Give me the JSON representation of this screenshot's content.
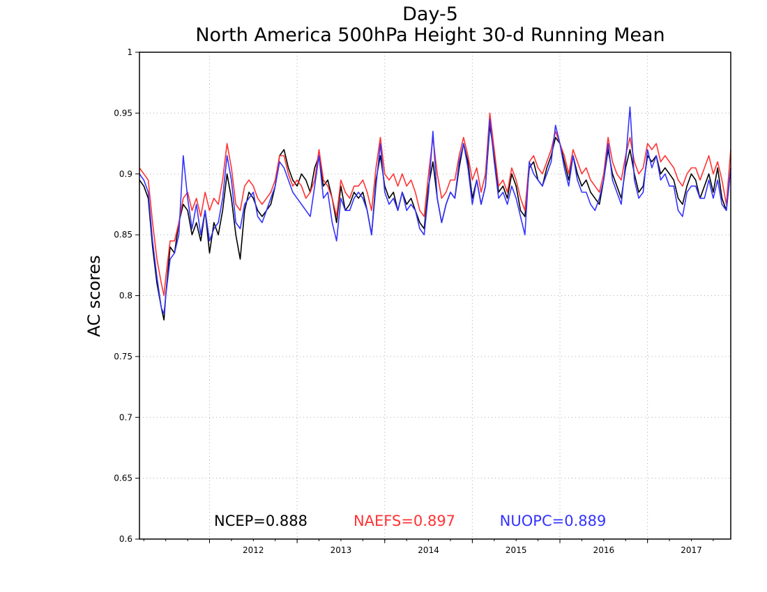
{
  "chart_data": {
    "type": "line",
    "title": "Day-5",
    "subtitle": "North America 500hPa Height 30-d Running Mean",
    "xlabel": "",
    "ylabel": "AC scores",
    "xlim": [
      2011.2,
      2017.95
    ],
    "ylim": [
      0.6,
      1.0
    ],
    "yticks": [
      "0.6",
      "0.65",
      "0.7",
      "0.75",
      "0.8",
      "0.85",
      "0.9",
      "0.95",
      "1"
    ],
    "xticks": [
      "2012",
      "2013",
      "2014",
      "2015",
      "2016",
      "2017"
    ],
    "grid": true,
    "legend": "bottom",
    "series": [
      {
        "name": "NCEP",
        "stat_label": "NCEP=0.888",
        "color": "#000000",
        "x": [
          2011.2,
          2011.25,
          2011.3,
          2011.35,
          2011.4,
          2011.45,
          2011.48,
          2011.5,
          2011.55,
          2011.6,
          2011.65,
          2011.7,
          2011.75,
          2011.8,
          2011.85,
          2011.9,
          2011.95,
          2012.0,
          2012.05,
          2012.1,
          2012.15,
          2012.2,
          2012.25,
          2012.3,
          2012.35,
          2012.4,
          2012.45,
          2012.5,
          2012.55,
          2012.6,
          2012.65,
          2012.7,
          2012.75,
          2012.8,
          2012.85,
          2012.9,
          2012.95,
          2013.0,
          2013.05,
          2013.1,
          2013.15,
          2013.2,
          2013.25,
          2013.3,
          2013.35,
          2013.4,
          2013.45,
          2013.5,
          2013.55,
          2013.6,
          2013.65,
          2013.7,
          2013.75,
          2013.8,
          2013.85,
          2013.9,
          2013.95,
          2014.0,
          2014.05,
          2014.1,
          2014.15,
          2014.2,
          2014.25,
          2014.3,
          2014.35,
          2014.4,
          2014.45,
          2014.5,
          2014.55,
          2014.6,
          2014.65,
          2014.7,
          2014.75,
          2014.8,
          2014.85,
          2014.9,
          2014.95,
          2015.0,
          2015.05,
          2015.1,
          2015.15,
          2015.2,
          2015.25,
          2015.3,
          2015.35,
          2015.4,
          2015.45,
          2015.5,
          2015.55,
          2015.6,
          2015.65,
          2015.7,
          2015.75,
          2015.8,
          2015.85,
          2015.9,
          2015.95,
          2016.0,
          2016.05,
          2016.1,
          2016.15,
          2016.2,
          2016.25,
          2016.3,
          2016.35,
          2016.4,
          2016.45,
          2016.5,
          2016.55,
          2016.6,
          2016.65,
          2016.7,
          2016.75,
          2016.8,
          2016.85,
          2016.9,
          2016.95,
          2017.0,
          2017.05,
          2017.1,
          2017.15,
          2017.2,
          2017.25,
          2017.3,
          2017.35,
          2017.4,
          2017.45,
          2017.5,
          2017.55,
          2017.6,
          2017.65,
          2017.7,
          2017.75,
          2017.8,
          2017.85,
          2017.9,
          2017.95
        ],
        "values": [
          0.895,
          0.89,
          0.88,
          0.84,
          0.81,
          0.79,
          0.78,
          0.8,
          0.84,
          0.835,
          0.86,
          0.875,
          0.87,
          0.85,
          0.86,
          0.845,
          0.87,
          0.835,
          0.86,
          0.85,
          0.87,
          0.9,
          0.88,
          0.85,
          0.83,
          0.87,
          0.885,
          0.88,
          0.87,
          0.865,
          0.87,
          0.875,
          0.89,
          0.915,
          0.92,
          0.905,
          0.895,
          0.89,
          0.9,
          0.895,
          0.885,
          0.905,
          0.915,
          0.89,
          0.895,
          0.88,
          0.86,
          0.89,
          0.87,
          0.875,
          0.885,
          0.88,
          0.885,
          0.87,
          0.85,
          0.895,
          0.915,
          0.89,
          0.88,
          0.885,
          0.87,
          0.885,
          0.875,
          0.88,
          0.87,
          0.86,
          0.855,
          0.89,
          0.91,
          0.88,
          0.86,
          0.875,
          0.885,
          0.88,
          0.905,
          0.925,
          0.91,
          0.88,
          0.895,
          0.875,
          0.89,
          0.94,
          0.915,
          0.885,
          0.89,
          0.88,
          0.9,
          0.89,
          0.87,
          0.865,
          0.905,
          0.91,
          0.895,
          0.89,
          0.905,
          0.915,
          0.93,
          0.925,
          0.91,
          0.895,
          0.915,
          0.9,
          0.89,
          0.895,
          0.885,
          0.88,
          0.875,
          0.895,
          0.92,
          0.9,
          0.89,
          0.88,
          0.905,
          0.92,
          0.9,
          0.885,
          0.89,
          0.915,
          0.91,
          0.915,
          0.9,
          0.905,
          0.9,
          0.895,
          0.88,
          0.875,
          0.89,
          0.9,
          0.895,
          0.88,
          0.89,
          0.9,
          0.885,
          0.905,
          0.88,
          0.87,
          0.905
        ]
      },
      {
        "name": "NAEFS",
        "stat_label": "NAEFS=0.897",
        "color": "#ff3333",
        "x": [
          2011.2,
          2011.25,
          2011.3,
          2011.35,
          2011.4,
          2011.45,
          2011.48,
          2011.5,
          2011.55,
          2011.6,
          2011.65,
          2011.7,
          2011.75,
          2011.8,
          2011.85,
          2011.9,
          2011.95,
          2012.0,
          2012.05,
          2012.1,
          2012.15,
          2012.2,
          2012.25,
          2012.3,
          2012.35,
          2012.4,
          2012.45,
          2012.5,
          2012.55,
          2012.6,
          2012.65,
          2012.7,
          2012.75,
          2012.8,
          2012.85,
          2012.9,
          2012.95,
          2013.0,
          2013.05,
          2013.1,
          2013.15,
          2013.2,
          2013.25,
          2013.3,
          2013.35,
          2013.4,
          2013.45,
          2013.5,
          2013.55,
          2013.6,
          2013.65,
          2013.7,
          2013.75,
          2013.8,
          2013.85,
          2013.9,
          2013.95,
          2014.0,
          2014.05,
          2014.1,
          2014.15,
          2014.2,
          2014.25,
          2014.3,
          2014.35,
          2014.4,
          2014.45,
          2014.5,
          2014.55,
          2014.6,
          2014.65,
          2014.7,
          2014.75,
          2014.8,
          2014.85,
          2014.9,
          2014.95,
          2015.0,
          2015.05,
          2015.1,
          2015.15,
          2015.2,
          2015.25,
          2015.3,
          2015.35,
          2015.4,
          2015.45,
          2015.5,
          2015.55,
          2015.6,
          2015.65,
          2015.7,
          2015.75,
          2015.8,
          2015.85,
          2015.9,
          2015.95,
          2016.0,
          2016.05,
          2016.1,
          2016.15,
          2016.2,
          2016.25,
          2016.3,
          2016.35,
          2016.4,
          2016.45,
          2016.5,
          2016.55,
          2016.6,
          2016.65,
          2016.7,
          2016.75,
          2016.8,
          2016.85,
          2016.9,
          2016.95,
          2017.0,
          2017.05,
          2017.1,
          2017.15,
          2017.2,
          2017.25,
          2017.3,
          2017.35,
          2017.4,
          2017.45,
          2017.5,
          2017.55,
          2017.6,
          2017.65,
          2017.7,
          2017.75,
          2017.8,
          2017.85,
          2017.9,
          2017.95
        ],
        "values": [
          0.905,
          0.9,
          0.895,
          0.86,
          0.83,
          0.81,
          0.8,
          0.815,
          0.845,
          0.845,
          0.86,
          0.88,
          0.885,
          0.87,
          0.88,
          0.865,
          0.885,
          0.87,
          0.88,
          0.875,
          0.895,
          0.925,
          0.905,
          0.875,
          0.87,
          0.89,
          0.895,
          0.89,
          0.88,
          0.875,
          0.88,
          0.885,
          0.895,
          0.915,
          0.915,
          0.9,
          0.89,
          0.895,
          0.89,
          0.88,
          0.885,
          0.895,
          0.92,
          0.895,
          0.89,
          0.88,
          0.865,
          0.895,
          0.885,
          0.88,
          0.89,
          0.89,
          0.895,
          0.885,
          0.87,
          0.905,
          0.93,
          0.9,
          0.895,
          0.9,
          0.89,
          0.9,
          0.89,
          0.895,
          0.885,
          0.87,
          0.865,
          0.9,
          0.93,
          0.9,
          0.88,
          0.885,
          0.895,
          0.895,
          0.915,
          0.93,
          0.915,
          0.895,
          0.905,
          0.885,
          0.9,
          0.95,
          0.92,
          0.89,
          0.895,
          0.885,
          0.905,
          0.895,
          0.88,
          0.87,
          0.91,
          0.915,
          0.905,
          0.9,
          0.91,
          0.92,
          0.935,
          0.925,
          0.915,
          0.9,
          0.92,
          0.91,
          0.9,
          0.905,
          0.895,
          0.89,
          0.885,
          0.9,
          0.93,
          0.91,
          0.9,
          0.895,
          0.915,
          0.93,
          0.91,
          0.9,
          0.905,
          0.925,
          0.92,
          0.925,
          0.91,
          0.915,
          0.91,
          0.905,
          0.895,
          0.89,
          0.9,
          0.905,
          0.905,
          0.895,
          0.905,
          0.915,
          0.9,
          0.91,
          0.895,
          0.875,
          0.92
        ]
      },
      {
        "name": "NUOPC",
        "stat_label": "NUOPC=0.889",
        "color": "#3333ff",
        "x": [
          2011.2,
          2011.25,
          2011.3,
          2011.35,
          2011.4,
          2011.45,
          2011.48,
          2011.5,
          2011.55,
          2011.6,
          2011.65,
          2011.7,
          2011.75,
          2011.8,
          2011.85,
          2011.9,
          2011.95,
          2012.0,
          2012.05,
          2012.1,
          2012.15,
          2012.2,
          2012.25,
          2012.3,
          2012.35,
          2012.4,
          2012.45,
          2012.5,
          2012.55,
          2012.6,
          2012.65,
          2012.7,
          2012.75,
          2012.8,
          2012.85,
          2012.9,
          2012.95,
          2013.0,
          2013.05,
          2013.1,
          2013.15,
          2013.2,
          2013.25,
          2013.3,
          2013.35,
          2013.4,
          2013.45,
          2013.5,
          2013.55,
          2013.6,
          2013.65,
          2013.7,
          2013.75,
          2013.8,
          2013.85,
          2013.9,
          2013.95,
          2014.0,
          2014.05,
          2014.1,
          2014.15,
          2014.2,
          2014.25,
          2014.3,
          2014.35,
          2014.4,
          2014.45,
          2014.5,
          2014.55,
          2014.6,
          2014.65,
          2014.7,
          2014.75,
          2014.8,
          2014.85,
          2014.9,
          2014.95,
          2015.0,
          2015.05,
          2015.1,
          2015.15,
          2015.2,
          2015.25,
          2015.3,
          2015.35,
          2015.4,
          2015.45,
          2015.5,
          2015.55,
          2015.6,
          2015.65,
          2015.7,
          2015.75,
          2015.8,
          2015.85,
          2015.9,
          2015.95,
          2016.0,
          2016.05,
          2016.1,
          2016.15,
          2016.2,
          2016.25,
          2016.3,
          2016.35,
          2016.4,
          2016.45,
          2016.5,
          2016.55,
          2016.6,
          2016.65,
          2016.7,
          2016.75,
          2016.8,
          2016.85,
          2016.9,
          2016.95,
          2017.0,
          2017.05,
          2017.1,
          2017.15,
          2017.2,
          2017.25,
          2017.3,
          2017.35,
          2017.4,
          2017.45,
          2017.5,
          2017.55,
          2017.6,
          2017.65,
          2017.7,
          2017.75,
          2017.8,
          2017.85,
          2017.9,
          2017.95
        ],
        "values": [
          0.9,
          0.895,
          0.885,
          0.845,
          0.815,
          0.79,
          0.785,
          0.8,
          0.83,
          0.835,
          0.85,
          0.915,
          0.88,
          0.855,
          0.875,
          0.85,
          0.87,
          0.845,
          0.855,
          0.86,
          0.88,
          0.915,
          0.895,
          0.86,
          0.855,
          0.875,
          0.88,
          0.885,
          0.865,
          0.86,
          0.87,
          0.88,
          0.89,
          0.91,
          0.905,
          0.895,
          0.885,
          0.88,
          0.875,
          0.87,
          0.865,
          0.89,
          0.915,
          0.88,
          0.885,
          0.86,
          0.845,
          0.88,
          0.87,
          0.87,
          0.88,
          0.885,
          0.88,
          0.87,
          0.85,
          0.89,
          0.925,
          0.885,
          0.875,
          0.88,
          0.87,
          0.885,
          0.87,
          0.875,
          0.87,
          0.855,
          0.85,
          0.885,
          0.935,
          0.88,
          0.86,
          0.875,
          0.885,
          0.88,
          0.91,
          0.925,
          0.905,
          0.875,
          0.895,
          0.875,
          0.89,
          0.945,
          0.91,
          0.88,
          0.885,
          0.875,
          0.89,
          0.88,
          0.865,
          0.85,
          0.91,
          0.9,
          0.895,
          0.89,
          0.9,
          0.91,
          0.94,
          0.925,
          0.905,
          0.89,
          0.915,
          0.895,
          0.885,
          0.885,
          0.875,
          0.87,
          0.88,
          0.895,
          0.925,
          0.895,
          0.885,
          0.875,
          0.91,
          0.955,
          0.895,
          0.88,
          0.885,
          0.92,
          0.905,
          0.915,
          0.895,
          0.9,
          0.89,
          0.89,
          0.87,
          0.865,
          0.885,
          0.89,
          0.89,
          0.88,
          0.88,
          0.895,
          0.88,
          0.895,
          0.875,
          0.87,
          0.905
        ]
      }
    ]
  }
}
